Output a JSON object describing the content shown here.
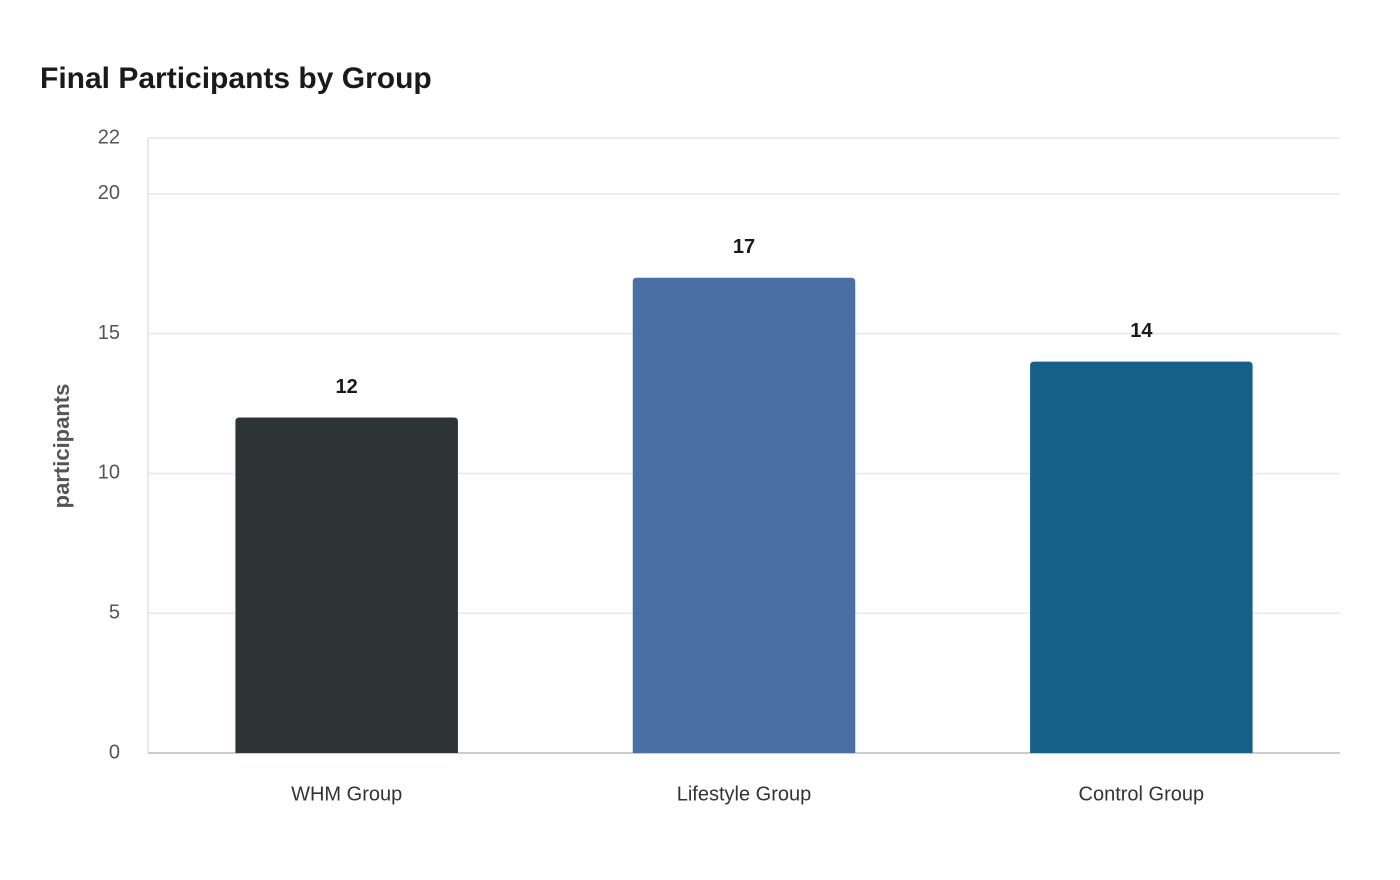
{
  "chart_data": {
    "type": "bar",
    "title": "Final Participants by Group",
    "y_label": "participants",
    "categories": [
      "WHM Group",
      "Lifestyle Group",
      "Control Group"
    ],
    "values": [
      12,
      17,
      14
    ],
    "colors": [
      "#2e3436",
      "#4a6fa5",
      "#166088"
    ],
    "ylim": [
      0,
      22
    ],
    "yticks": [
      0,
      5,
      10,
      15,
      20,
      22
    ],
    "grid": true
  }
}
